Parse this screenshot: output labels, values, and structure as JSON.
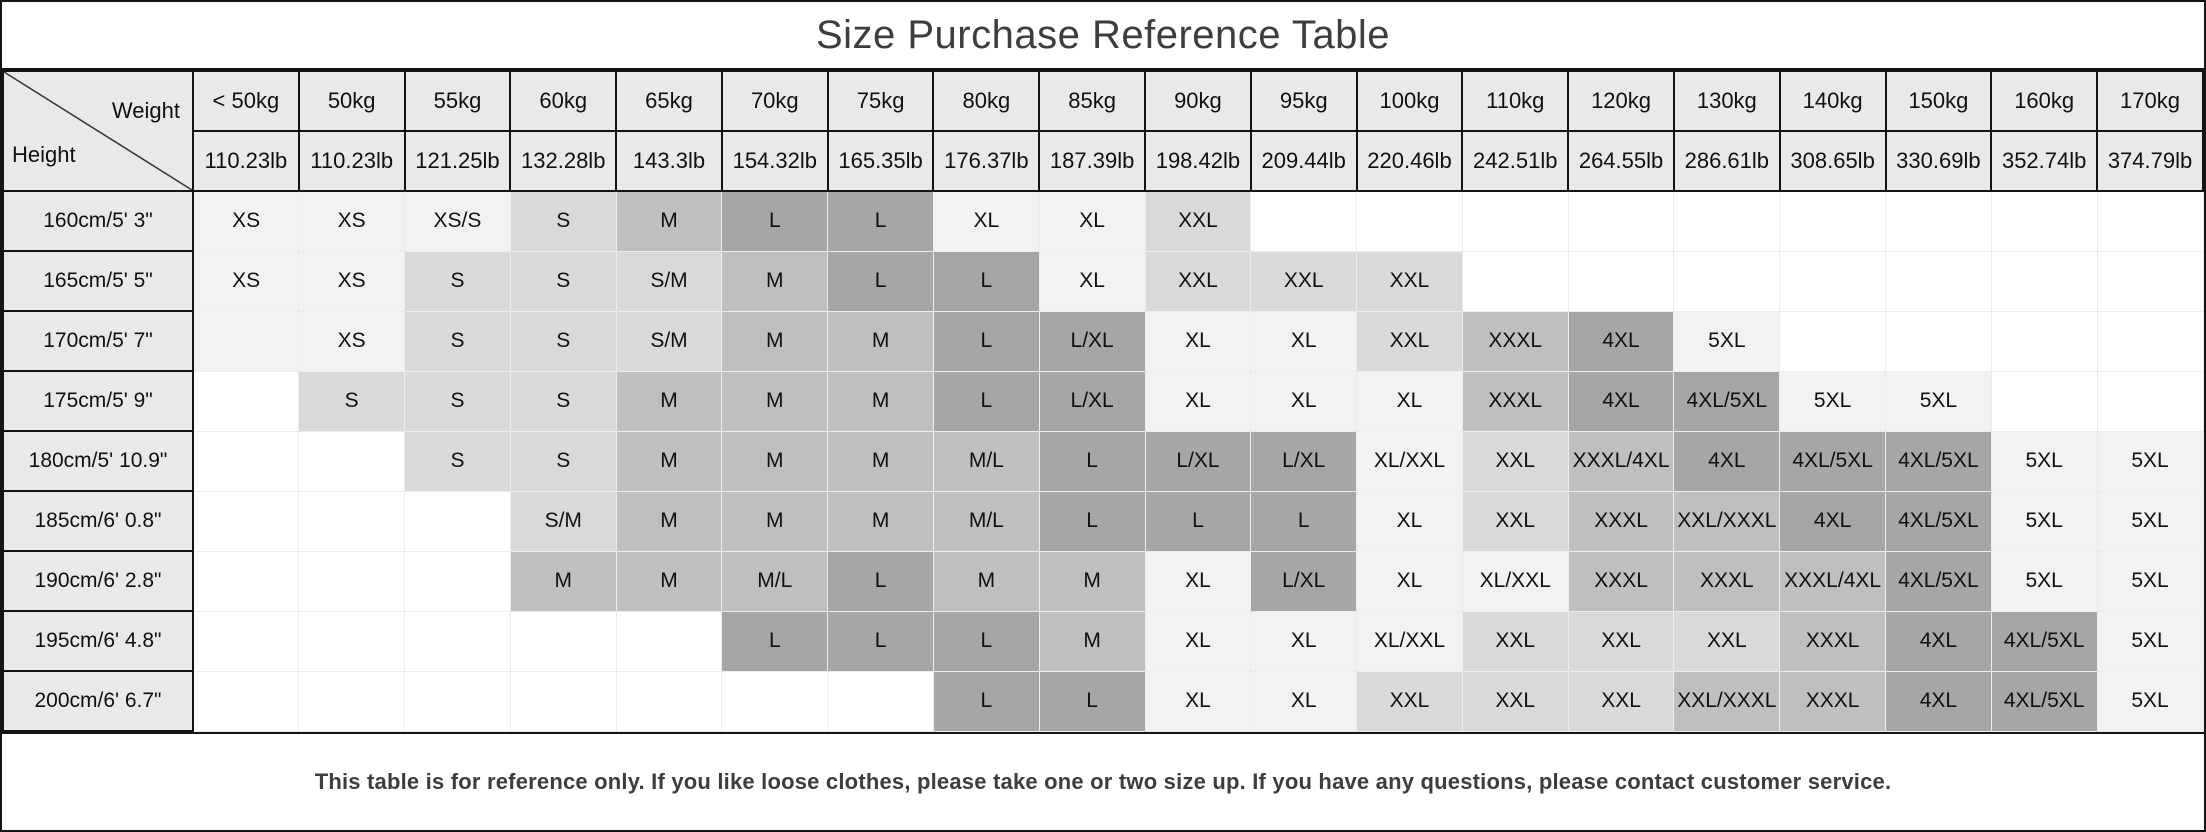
{
  "title": "Size Purchase Reference Table",
  "corner": {
    "weight_label": "Weight",
    "height_label": "Height"
  },
  "footer_note": "This table is for reference only. If you like loose clothes, please take one or two size up. If you have any questions, please contact customer service.",
  "colors": {
    "shade_0": "#ffffff",
    "shade_1": "#f2f2f2",
    "shade_2": "#d9d9d9",
    "shade_3": "#bfbfbf",
    "shade_4": "#a6a6a6",
    "header_bg": "#e9e9e9",
    "border_black": "#141414"
  },
  "chart_data": {
    "type": "table",
    "title": "Size Purchase Reference Table",
    "corner_top_label": "Weight",
    "corner_bottom_label": "Height",
    "columns": [
      {
        "kg": "< 50kg",
        "lb": "110.23lb"
      },
      {
        "kg": "50kg",
        "lb": "110.23lb"
      },
      {
        "kg": "55kg",
        "lb": "121.25lb"
      },
      {
        "kg": "60kg",
        "lb": "132.28lb"
      },
      {
        "kg": "65kg",
        "lb": "143.3lb"
      },
      {
        "kg": "70kg",
        "lb": "154.32lb"
      },
      {
        "kg": "75kg",
        "lb": "165.35lb"
      },
      {
        "kg": "80kg",
        "lb": "176.37lb"
      },
      {
        "kg": "85kg",
        "lb": "187.39lb"
      },
      {
        "kg": "90kg",
        "lb": "198.42lb"
      },
      {
        "kg": "95kg",
        "lb": "209.44lb"
      },
      {
        "kg": "100kg",
        "lb": "220.46lb"
      },
      {
        "kg": "110kg",
        "lb": "242.51lb"
      },
      {
        "kg": "120kg",
        "lb": "264.55lb"
      },
      {
        "kg": "130kg",
        "lb": "286.61lb"
      },
      {
        "kg": "140kg",
        "lb": "308.65lb"
      },
      {
        "kg": "150kg",
        "lb": "330.69lb"
      },
      {
        "kg": "160kg",
        "lb": "352.74lb"
      },
      {
        "kg": "170kg",
        "lb": "374.79lb"
      }
    ],
    "rows": [
      {
        "height": "160cm/5' 3\"",
        "cells": [
          {
            "t": "XS",
            "s": 1
          },
          {
            "t": "XS",
            "s": 1
          },
          {
            "t": "XS/S",
            "s": 1
          },
          {
            "t": "S",
            "s": 2
          },
          {
            "t": "M",
            "s": 3
          },
          {
            "t": "L",
            "s": 4
          },
          {
            "t": "L",
            "s": 4
          },
          {
            "t": "XL",
            "s": 1
          },
          {
            "t": "XL",
            "s": 1
          },
          {
            "t": "XXL",
            "s": 2
          },
          {
            "t": "",
            "s": 0
          },
          {
            "t": "",
            "s": 0
          },
          {
            "t": "",
            "s": 0
          },
          {
            "t": "",
            "s": 0
          },
          {
            "t": "",
            "s": 0
          },
          {
            "t": "",
            "s": 0
          },
          {
            "t": "",
            "s": 0
          },
          {
            "t": "",
            "s": 0
          },
          {
            "t": "",
            "s": 0
          }
        ]
      },
      {
        "height": "165cm/5' 5\"",
        "cells": [
          {
            "t": "XS",
            "s": 1
          },
          {
            "t": "XS",
            "s": 1
          },
          {
            "t": "S",
            "s": 2
          },
          {
            "t": "S",
            "s": 2
          },
          {
            "t": "S/M",
            "s": 2
          },
          {
            "t": "M",
            "s": 3
          },
          {
            "t": "L",
            "s": 4
          },
          {
            "t": "L",
            "s": 4
          },
          {
            "t": "XL",
            "s": 1
          },
          {
            "t": "XXL",
            "s": 2
          },
          {
            "t": "XXL",
            "s": 2
          },
          {
            "t": "XXL",
            "s": 2
          },
          {
            "t": "",
            "s": 0
          },
          {
            "t": "",
            "s": 0
          },
          {
            "t": "",
            "s": 0
          },
          {
            "t": "",
            "s": 0
          },
          {
            "t": "",
            "s": 0
          },
          {
            "t": "",
            "s": 0
          },
          {
            "t": "",
            "s": 0
          }
        ]
      },
      {
        "height": "170cm/5' 7\"",
        "cells": [
          {
            "t": "",
            "s": 1
          },
          {
            "t": "XS",
            "s": 1
          },
          {
            "t": "S",
            "s": 2
          },
          {
            "t": "S",
            "s": 2
          },
          {
            "t": "S/M",
            "s": 2
          },
          {
            "t": "M",
            "s": 3
          },
          {
            "t": "M",
            "s": 3
          },
          {
            "t": "L",
            "s": 4
          },
          {
            "t": "L/XL",
            "s": 4
          },
          {
            "t": "XL",
            "s": 1
          },
          {
            "t": "XL",
            "s": 1
          },
          {
            "t": "XXL",
            "s": 2
          },
          {
            "t": "XXXL",
            "s": 3
          },
          {
            "t": "4XL",
            "s": 4
          },
          {
            "t": "5XL",
            "s": 1
          },
          {
            "t": "",
            "s": 0
          },
          {
            "t": "",
            "s": 0
          },
          {
            "t": "",
            "s": 0
          },
          {
            "t": "",
            "s": 0
          }
        ]
      },
      {
        "height": "175cm/5' 9\"",
        "cells": [
          {
            "t": "",
            "s": 0
          },
          {
            "t": "S",
            "s": 2
          },
          {
            "t": "S",
            "s": 2
          },
          {
            "t": "S",
            "s": 2
          },
          {
            "t": "M",
            "s": 3
          },
          {
            "t": "M",
            "s": 3
          },
          {
            "t": "M",
            "s": 3
          },
          {
            "t": "L",
            "s": 4
          },
          {
            "t": "L/XL",
            "s": 4
          },
          {
            "t": "XL",
            "s": 1
          },
          {
            "t": "XL",
            "s": 1
          },
          {
            "t": "XL",
            "s": 1
          },
          {
            "t": "XXXL",
            "s": 3
          },
          {
            "t": "4XL",
            "s": 4
          },
          {
            "t": "4XL/5XL",
            "s": 4
          },
          {
            "t": "5XL",
            "s": 1
          },
          {
            "t": "5XL",
            "s": 1
          },
          {
            "t": "",
            "s": 0
          },
          {
            "t": "",
            "s": 0
          }
        ]
      },
      {
        "height": "180cm/5' 10.9\"",
        "cells": [
          {
            "t": "",
            "s": 0
          },
          {
            "t": "",
            "s": 0
          },
          {
            "t": "S",
            "s": 2
          },
          {
            "t": "S",
            "s": 2
          },
          {
            "t": "M",
            "s": 3
          },
          {
            "t": "M",
            "s": 3
          },
          {
            "t": "M",
            "s": 3
          },
          {
            "t": "M/L",
            "s": 3
          },
          {
            "t": "L",
            "s": 4
          },
          {
            "t": "L/XL",
            "s": 4
          },
          {
            "t": "L/XL",
            "s": 4
          },
          {
            "t": "XL/XXL",
            "s": 1
          },
          {
            "t": "XXL",
            "s": 2
          },
          {
            "t": "XXXL/4XL",
            "s": 3
          },
          {
            "t": "4XL",
            "s": 4
          },
          {
            "t": "4XL/5XL",
            "s": 4
          },
          {
            "t": "4XL/5XL",
            "s": 4
          },
          {
            "t": "5XL",
            "s": 1
          },
          {
            "t": "5XL",
            "s": 1
          }
        ]
      },
      {
        "height": "185cm/6' 0.8\"",
        "cells": [
          {
            "t": "",
            "s": 0
          },
          {
            "t": "",
            "s": 0
          },
          {
            "t": "",
            "s": 0
          },
          {
            "t": "S/M",
            "s": 2
          },
          {
            "t": "M",
            "s": 3
          },
          {
            "t": "M",
            "s": 3
          },
          {
            "t": "M",
            "s": 3
          },
          {
            "t": "M/L",
            "s": 3
          },
          {
            "t": "L",
            "s": 4
          },
          {
            "t": "L",
            "s": 4
          },
          {
            "t": "L",
            "s": 4
          },
          {
            "t": "XL",
            "s": 1
          },
          {
            "t": "XXL",
            "s": 2
          },
          {
            "t": "XXXL",
            "s": 3
          },
          {
            "t": "XXL/XXXL",
            "s": 3
          },
          {
            "t": "4XL",
            "s": 4
          },
          {
            "t": "4XL/5XL",
            "s": 4
          },
          {
            "t": "5XL",
            "s": 1
          },
          {
            "t": "5XL",
            "s": 1
          }
        ]
      },
      {
        "height": "190cm/6' 2.8\"",
        "cells": [
          {
            "t": "",
            "s": 0
          },
          {
            "t": "",
            "s": 0
          },
          {
            "t": "",
            "s": 0
          },
          {
            "t": "M",
            "s": 3
          },
          {
            "t": "M",
            "s": 3
          },
          {
            "t": "M/L",
            "s": 3
          },
          {
            "t": "L",
            "s": 4
          },
          {
            "t": "M",
            "s": 3
          },
          {
            "t": "M",
            "s": 3
          },
          {
            "t": "XL",
            "s": 1
          },
          {
            "t": "L/XL",
            "s": 4
          },
          {
            "t": "XL",
            "s": 1
          },
          {
            "t": "XL/XXL",
            "s": 1
          },
          {
            "t": "XXXL",
            "s": 3
          },
          {
            "t": "XXXL",
            "s": 3
          },
          {
            "t": "XXXL/4XL",
            "s": 3
          },
          {
            "t": "4XL/5XL",
            "s": 4
          },
          {
            "t": "5XL",
            "s": 1
          },
          {
            "t": "5XL",
            "s": 1
          }
        ]
      },
      {
        "height": "195cm/6' 4.8\"",
        "cells": [
          {
            "t": "",
            "s": 0
          },
          {
            "t": "",
            "s": 0
          },
          {
            "t": "",
            "s": 0
          },
          {
            "t": "",
            "s": 0
          },
          {
            "t": "",
            "s": 0
          },
          {
            "t": "L",
            "s": 4
          },
          {
            "t": "L",
            "s": 4
          },
          {
            "t": "L",
            "s": 4
          },
          {
            "t": "M",
            "s": 3
          },
          {
            "t": "XL",
            "s": 1
          },
          {
            "t": "XL",
            "s": 1
          },
          {
            "t": "XL/XXL",
            "s": 1
          },
          {
            "t": "XXL",
            "s": 2
          },
          {
            "t": "XXL",
            "s": 2
          },
          {
            "t": "XXL",
            "s": 2
          },
          {
            "t": "XXXL",
            "s": 3
          },
          {
            "t": "4XL",
            "s": 4
          },
          {
            "t": "4XL/5XL",
            "s": 4
          },
          {
            "t": "5XL",
            "s": 1
          }
        ]
      },
      {
        "height": "200cm/6' 6.7\"",
        "cells": [
          {
            "t": "",
            "s": 0
          },
          {
            "t": "",
            "s": 0
          },
          {
            "t": "",
            "s": 0
          },
          {
            "t": "",
            "s": 0
          },
          {
            "t": "",
            "s": 0
          },
          {
            "t": "",
            "s": 0
          },
          {
            "t": "",
            "s": 0
          },
          {
            "t": "L",
            "s": 4
          },
          {
            "t": "L",
            "s": 4
          },
          {
            "t": "XL",
            "s": 1
          },
          {
            "t": "XL",
            "s": 1
          },
          {
            "t": "XXL",
            "s": 2
          },
          {
            "t": "XXL",
            "s": 2
          },
          {
            "t": "XXL",
            "s": 2
          },
          {
            "t": "XXL/XXXL",
            "s": 3
          },
          {
            "t": "XXXL",
            "s": 3
          },
          {
            "t": "4XL",
            "s": 4
          },
          {
            "t": "4XL/5XL",
            "s": 4
          },
          {
            "t": "5XL",
            "s": 1
          }
        ]
      }
    ]
  }
}
